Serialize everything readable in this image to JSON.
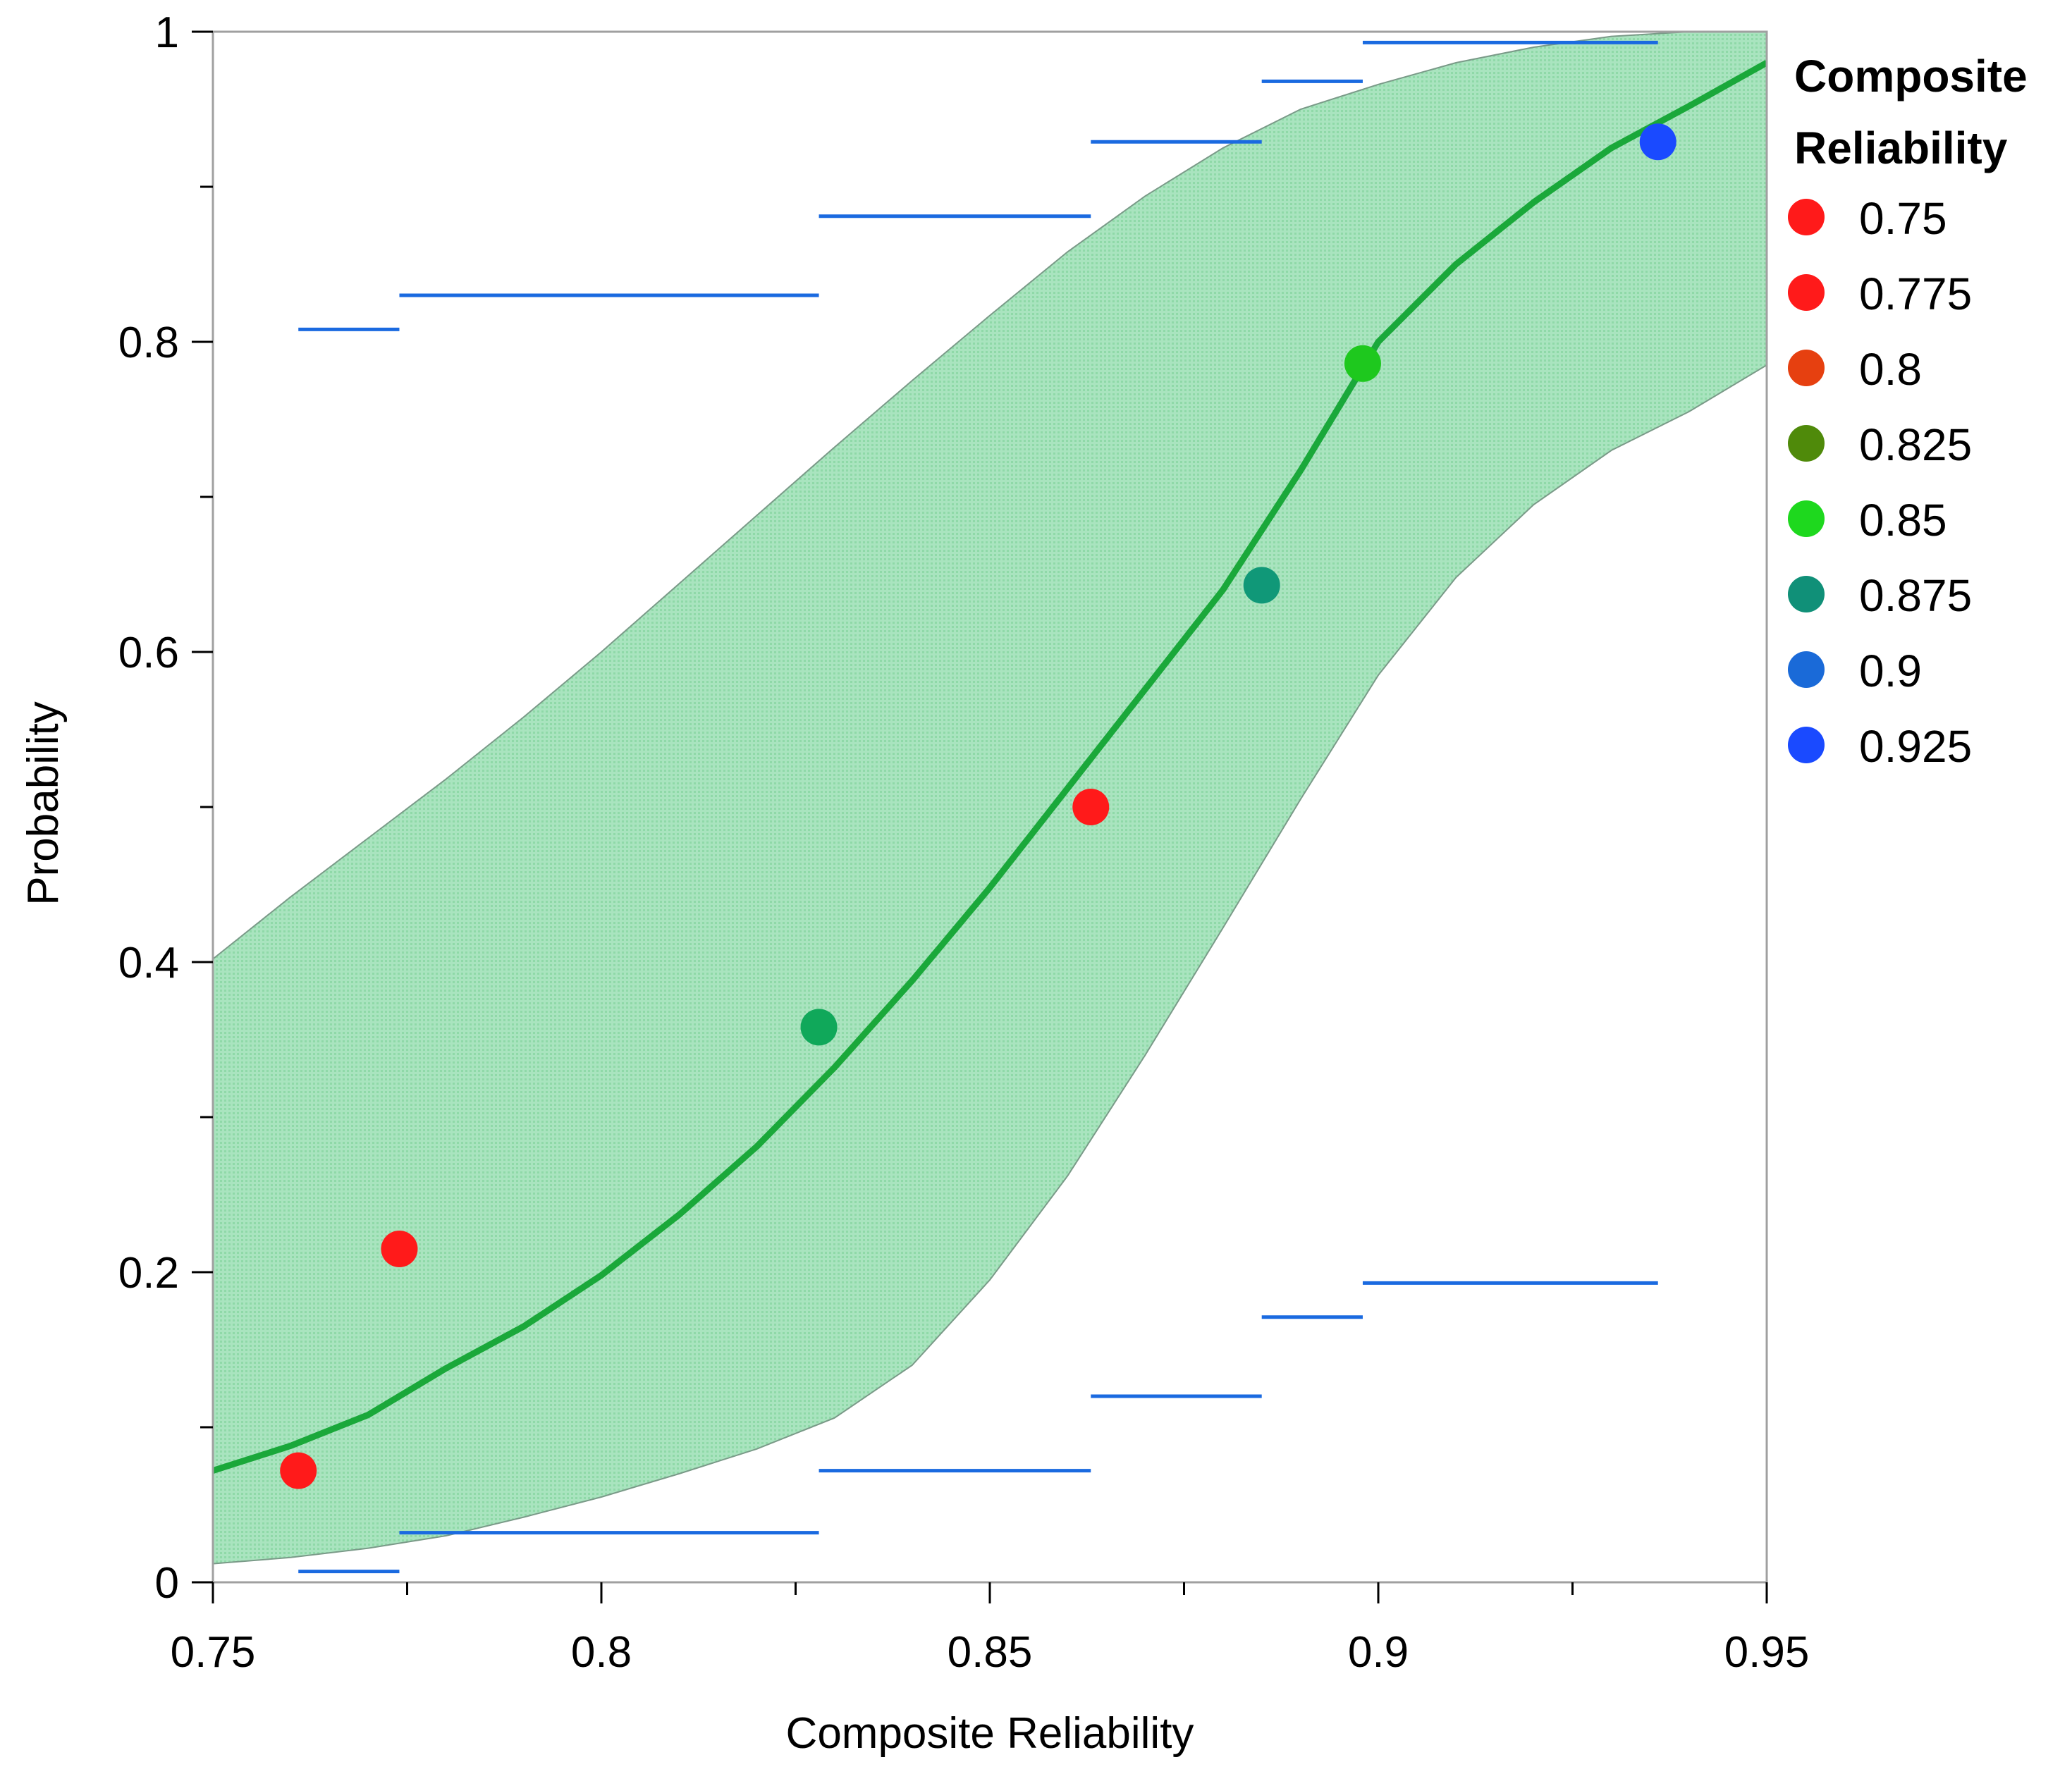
{
  "chart_data": {
    "type": "scatter",
    "xlabel": "Composite Reliability",
    "ylabel": "Probability",
    "xlim": [
      0.75,
      0.95
    ],
    "ylim": [
      0,
      1
    ],
    "x_ticks": [
      0.75,
      0.8,
      0.85,
      0.9,
      0.95
    ],
    "x_tick_labels": [
      "0.75",
      "0.8",
      "0.85",
      "0.9",
      "0.95"
    ],
    "y_ticks": [
      0,
      0.2,
      0.4,
      0.6,
      0.8,
      1
    ],
    "y_tick_labels": [
      "0",
      "0.2",
      "0.4",
      "0.6",
      "0.8",
      "1"
    ],
    "x_minor_ticks": [
      0.775,
      0.825,
      0.875,
      0.925
    ],
    "y_minor_ticks": [
      0.1,
      0.3,
      0.5,
      0.7,
      0.9
    ],
    "legend": {
      "title": [
        "Composite",
        "Reliability"
      ],
      "position": "right",
      "entries": [
        {
          "label": "0.75",
          "color": "#ff1a1a"
        },
        {
          "label": "0.775",
          "color": "#ff1a1a"
        },
        {
          "label": "0.8",
          "color": "#e64010"
        },
        {
          "label": "0.825",
          "color": "#4f8a0a"
        },
        {
          "label": "0.85",
          "color": "#1ed81e"
        },
        {
          "label": "0.875",
          "color": "#109078"
        },
        {
          "label": "0.9",
          "color": "#1a6ad8"
        },
        {
          "label": "0.925",
          "color": "#1a4aff"
        }
      ]
    },
    "points": [
      {
        "x": 0.761,
        "y": 0.072,
        "color": "#ff1a1a"
      },
      {
        "x": 0.774,
        "y": 0.215,
        "color": "#ff1a1a"
      },
      {
        "x": 0.828,
        "y": 0.358,
        "color": "#10a85a"
      },
      {
        "x": 0.863,
        "y": 0.5,
        "color": "#ff1a1a"
      },
      {
        "x": 0.885,
        "y": 0.643,
        "color": "#109878"
      },
      {
        "x": 0.898,
        "y": 0.786,
        "color": "#1ec81e"
      },
      {
        "x": 0.936,
        "y": 0.929,
        "color": "#1a4aff"
      }
    ],
    "fit_curve": {
      "color": "#1aa83a",
      "x": [
        0.75,
        0.76,
        0.77,
        0.78,
        0.79,
        0.8,
        0.81,
        0.82,
        0.83,
        0.84,
        0.85,
        0.86,
        0.87,
        0.88,
        0.89,
        0.9,
        0.91,
        0.92,
        0.93,
        0.94,
        0.95
      ],
      "y": [
        0.072,
        0.088,
        0.108,
        0.138,
        0.165,
        0.198,
        0.237,
        0.281,
        0.332,
        0.388,
        0.448,
        0.512,
        0.576,
        0.64,
        0.717,
        0.8,
        0.85,
        0.89,
        0.925,
        0.952,
        0.98
      ]
    },
    "confidence_band": {
      "color": "#8fd9a8",
      "x": [
        0.75,
        0.76,
        0.77,
        0.78,
        0.79,
        0.8,
        0.81,
        0.82,
        0.83,
        0.84,
        0.85,
        0.86,
        0.87,
        0.88,
        0.89,
        0.9,
        0.91,
        0.92,
        0.93,
        0.94,
        0.95
      ],
      "upper": [
        0.402,
        0.442,
        0.48,
        0.518,
        0.558,
        0.6,
        0.644,
        0.688,
        0.732,
        0.775,
        0.817,
        0.858,
        0.894,
        0.925,
        0.95,
        0.966,
        0.98,
        0.99,
        0.997,
        1.0,
        1.0
      ],
      "lower": [
        0.012,
        0.016,
        0.022,
        0.03,
        0.042,
        0.055,
        0.07,
        0.086,
        0.106,
        0.14,
        0.195,
        0.262,
        0.34,
        0.422,
        0.505,
        0.585,
        0.648,
        0.695,
        0.73,
        0.755,
        0.785
      ]
    },
    "range_lines": {
      "color": "#1a6ae0",
      "upper": [
        {
          "x0": 0.761,
          "x1": 0.774,
          "y": 0.808
        },
        {
          "x0": 0.774,
          "x1": 0.828,
          "y": 0.83
        },
        {
          "x0": 0.828,
          "x1": 0.863,
          "y": 0.881
        },
        {
          "x0": 0.863,
          "x1": 0.885,
          "y": 0.929
        },
        {
          "x0": 0.885,
          "x1": 0.898,
          "y": 0.968
        },
        {
          "x0": 0.898,
          "x1": 0.936,
          "y": 0.993
        }
      ],
      "lower": [
        {
          "x0": 0.761,
          "x1": 0.774,
          "y": 0.007
        },
        {
          "x0": 0.774,
          "x1": 0.828,
          "y": 0.032
        },
        {
          "x0": 0.828,
          "x1": 0.863,
          "y": 0.072
        },
        {
          "x0": 0.863,
          "x1": 0.885,
          "y": 0.12
        },
        {
          "x0": 0.885,
          "x1": 0.898,
          "y": 0.171
        },
        {
          "x0": 0.898,
          "x1": 0.936,
          "y": 0.193
        }
      ]
    }
  }
}
